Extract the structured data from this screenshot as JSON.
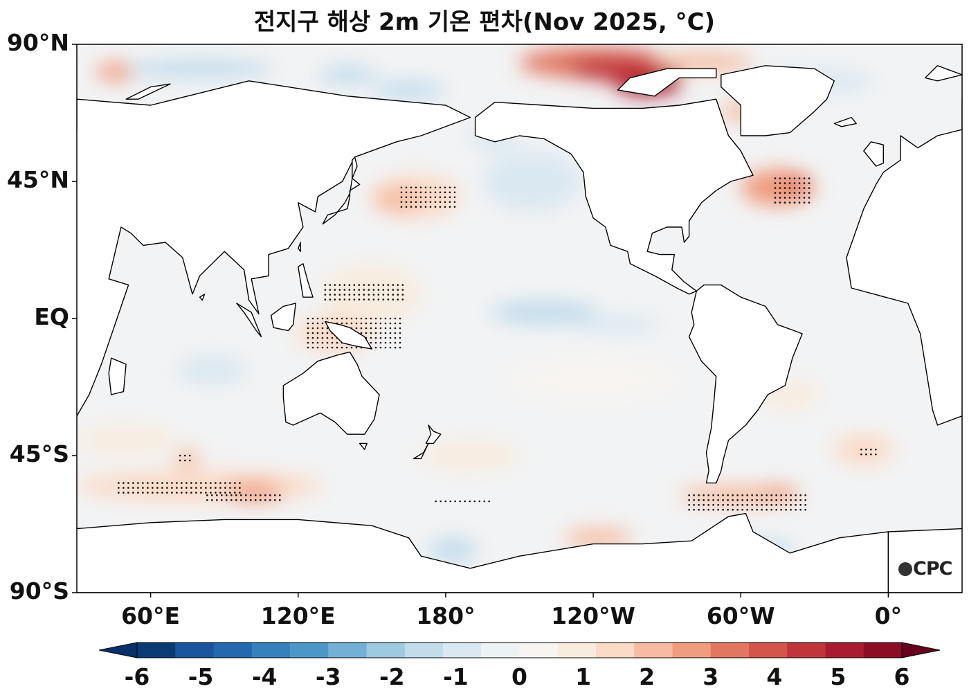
{
  "title": "전지구 해상 2m 기온 편차(Nov 2025, °C)",
  "logo_text": "CPC",
  "colors": {
    "land": "#ffffff",
    "ocean_base": "#f2f3f4",
    "frame": "#000000"
  },
  "lat_ticks": [
    {
      "label": "90°N",
      "lat": 90
    },
    {
      "label": "45°N",
      "lat": 45
    },
    {
      "label": "EQ",
      "lat": 0
    },
    {
      "label": "45°S",
      "lat": -45
    },
    {
      "label": "90°S",
      "lat": -90
    }
  ],
  "lon_ticks": [
    {
      "label": "60°E",
      "lon": 60
    },
    {
      "label": "120°E",
      "lon": 120
    },
    {
      "label": "180°",
      "lon": 180
    },
    {
      "label": "120°W",
      "lon": 240
    },
    {
      "label": "60°W",
      "lon": 300
    },
    {
      "label": "0°",
      "lon": 360
    }
  ],
  "colorbar": {
    "labels": [
      "-6",
      "-5",
      "-4",
      "-3",
      "-2",
      "-1",
      "0",
      "1",
      "2",
      "3",
      "4",
      "5",
      "6"
    ],
    "colors": [
      "#0a3b73",
      "#1a559e",
      "#2468ae",
      "#3481bc",
      "#4b98c8",
      "#74b0d5",
      "#9dc9e1",
      "#c2dcec",
      "#dae8f1",
      "#edf2f5",
      "#f7f4f1",
      "#f8ecdf",
      "#fbdac6",
      "#f6bca1",
      "#f09c7f",
      "#e27761",
      "#d4564b",
      "#c1353a",
      "#a91c30",
      "#8c0c25"
    ],
    "extend_low": "#08306b",
    "extend_high": "#67001f"
  },
  "anomaly_regions": [
    {
      "lon": 240,
      "lat": 84,
      "rx": 30,
      "ry": 5,
      "value": 3.5
    },
    {
      "lon": 262,
      "lat": 78,
      "rx": 14,
      "ry": 5,
      "value": 5.2
    },
    {
      "lon": 250,
      "lat": 82,
      "rx": 20,
      "ry": 4,
      "value": 4.4
    },
    {
      "lon": 285,
      "lat": 84,
      "rx": 20,
      "ry": 3,
      "value": 2.2
    },
    {
      "lon": 300,
      "lat": 68,
      "rx": 8,
      "ry": 3,
      "value": 1.8
    },
    {
      "lon": 46,
      "lat": 81,
      "rx": 8,
      "ry": 3,
      "value": 2.6
    },
    {
      "lon": 80,
      "lat": 82,
      "rx": 30,
      "ry": 3,
      "value": -1.2
    },
    {
      "lon": 140,
      "lat": 80,
      "rx": 12,
      "ry": 3,
      "value": -1.6
    },
    {
      "lon": 165,
      "lat": 75,
      "rx": 15,
      "ry": 3,
      "value": -1.8
    },
    {
      "lon": 330,
      "lat": 78,
      "rx": 25,
      "ry": 4,
      "value": -1.0
    },
    {
      "lon": 168,
      "lat": 40,
      "rx": 18,
      "ry": 7,
      "value": 1.6
    },
    {
      "lon": 160,
      "lat": 39,
      "rx": 10,
      "ry": 4,
      "value": 2.0
    },
    {
      "lon": 315,
      "lat": 43,
      "rx": 15,
      "ry": 6,
      "value": 2.4
    },
    {
      "lon": 322,
      "lat": 44,
      "rx": 6,
      "ry": 3,
      "value": 3.2
    },
    {
      "lon": 215,
      "lat": 45,
      "rx": 20,
      "ry": 10,
      "value": -0.9
    },
    {
      "lon": 200,
      "lat": 60,
      "rx": 10,
      "ry": 5,
      "value": -0.8
    },
    {
      "lon": 150,
      "lat": 8,
      "rx": 20,
      "ry": 10,
      "value": 1.0
    },
    {
      "lon": 135,
      "lat": -5,
      "rx": 15,
      "ry": 6,
      "value": 1.2
    },
    {
      "lon": 220,
      "lat": 2,
      "rx": 22,
      "ry": 4,
      "value": -1.4
    },
    {
      "lon": 250,
      "lat": -2,
      "rx": 18,
      "ry": 3,
      "value": -0.9
    },
    {
      "lon": 85,
      "lat": -17,
      "rx": 14,
      "ry": 5,
      "value": -0.8
    },
    {
      "lon": 80,
      "lat": -55,
      "rx": 50,
      "ry": 5,
      "value": 1.6
    },
    {
      "lon": 102,
      "lat": -57,
      "rx": 12,
      "ry": 3,
      "value": 2.6
    },
    {
      "lon": 75,
      "lat": -46,
      "rx": 5,
      "ry": 3,
      "value": 2.2
    },
    {
      "lon": 300,
      "lat": -58,
      "rx": 25,
      "ry": 3,
      "value": 1.8
    },
    {
      "lon": 315,
      "lat": -57,
      "rx": 8,
      "ry": 2,
      "value": 2.4
    },
    {
      "lon": 242,
      "lat": -72,
      "rx": 14,
      "ry": 3,
      "value": 2.0
    },
    {
      "lon": 183,
      "lat": -76,
      "rx": 10,
      "ry": 4,
      "value": -1.6
    },
    {
      "lon": 308,
      "lat": -76,
      "rx": 14,
      "ry": 3,
      "value": -1.4
    },
    {
      "lon": 350,
      "lat": -43,
      "rx": 12,
      "ry": 5,
      "value": 1.4
    },
    {
      "lon": 320,
      "lat": -25,
      "rx": 12,
      "ry": 5,
      "value": 1.0
    },
    {
      "lon": 240,
      "lat": -20,
      "rx": 35,
      "ry": 8,
      "value": 0.6
    },
    {
      "lon": 190,
      "lat": -45,
      "rx": 20,
      "ry": 5,
      "value": 0.8
    },
    {
      "lon": 50,
      "lat": -40,
      "rx": 20,
      "ry": 5,
      "value": 0.8
    }
  ],
  "stipple_regions": [
    {
      "lon": [
        162,
        184
      ],
      "lat": [
        36,
        43
      ]
    },
    {
      "lon": [
        314,
        329
      ],
      "lat": [
        38,
        46
      ]
    },
    {
      "lon": [
        131,
        164
      ],
      "lat": [
        5,
        11
      ]
    },
    {
      "lon": [
        124,
        162
      ],
      "lat": [
        -10,
        0
      ]
    },
    {
      "lon": [
        47,
        98
      ],
      "lat": [
        -58,
        -54
      ]
    },
    {
      "lon": [
        83,
        113
      ],
      "lat": [
        -60,
        -58
      ]
    },
    {
      "lon": [
        279,
        327
      ],
      "lat": [
        -63,
        -58
      ]
    },
    {
      "lon": [
        176,
        198
      ],
      "lat": [
        -60,
        -60
      ]
    },
    {
      "lon": [
        349,
        355
      ],
      "lat": [
        -46,
        -43
      ]
    },
    {
      "lon": [
        72,
        77
      ],
      "lat": [
        -48,
        -45
      ]
    },
    {
      "lon": [
        23,
        34
      ],
      "lat": [
        -52,
        -52
      ]
    }
  ],
  "land_polygons": [
    [
      [
        30,
        72
      ],
      [
        60,
        70
      ],
      [
        100,
        78
      ],
      [
        140,
        73
      ],
      [
        180,
        70
      ],
      [
        190,
        66
      ],
      [
        170,
        60
      ],
      [
        160,
        58
      ],
      [
        143,
        53
      ],
      [
        138,
        45
      ],
      [
        128,
        40
      ],
      [
        127,
        35
      ],
      [
        120,
        38
      ],
      [
        122,
        30
      ],
      [
        116,
        23
      ],
      [
        108,
        21
      ],
      [
        108,
        14
      ],
      [
        101,
        13
      ],
      [
        104,
        1.5
      ],
      [
        100,
        6
      ],
      [
        98,
        16
      ],
      [
        90,
        22
      ],
      [
        80,
        14
      ],
      [
        77,
        8
      ],
      [
        73,
        20
      ],
      [
        66,
        25
      ],
      [
        57,
        24
      ],
      [
        52,
        28
      ],
      [
        48,
        30
      ],
      [
        43,
        13
      ],
      [
        51,
        11
      ],
      [
        40,
        -15
      ],
      [
        35,
        -25
      ],
      [
        30,
        -32
      ],
      [
        20,
        -35
      ],
      [
        18,
        -30
      ],
      [
        13,
        -5
      ],
      [
        8,
        5
      ],
      [
        -15,
        10
      ],
      [
        -17,
        20
      ],
      [
        -10,
        36
      ],
      [
        -5,
        44
      ],
      [
        -2,
        48
      ],
      [
        5,
        52
      ],
      [
        5,
        60
      ],
      [
        12,
        56
      ],
      [
        20,
        60
      ],
      [
        30,
        62
      ],
      [
        30,
        72
      ]
    ],
    [
      [
        114,
        -22
      ],
      [
        122,
        -18
      ],
      [
        128,
        -14
      ],
      [
        136,
        -12
      ],
      [
        141,
        -11
      ],
      [
        144,
        -15
      ],
      [
        146,
        -19
      ],
      [
        153,
        -25
      ],
      [
        151,
        -33
      ],
      [
        147,
        -38
      ],
      [
        140,
        -38
      ],
      [
        135,
        -34
      ],
      [
        129,
        -31
      ],
      [
        118,
        -35
      ],
      [
        115,
        -34
      ],
      [
        114,
        -26
      ],
      [
        114,
        -22
      ]
    ],
    [
      [
        192,
        66
      ],
      [
        200,
        71
      ],
      [
        220,
        70
      ],
      [
        240,
        69
      ],
      [
        260,
        69
      ],
      [
        275,
        70
      ],
      [
        290,
        72
      ],
      [
        295,
        60
      ],
      [
        300,
        55
      ],
      [
        305,
        47
      ],
      [
        296,
        45
      ],
      [
        290,
        42
      ],
      [
        284,
        38
      ],
      [
        279,
        32
      ],
      [
        279,
        27
      ],
      [
        277,
        25
      ],
      [
        276,
        30
      ],
      [
        270,
        30
      ],
      [
        264,
        28
      ],
      [
        262,
        22
      ],
      [
        267,
        21
      ],
      [
        273,
        21
      ],
      [
        272,
        16
      ],
      [
        277,
        12
      ],
      [
        282,
        9
      ],
      [
        279,
        8
      ],
      [
        274,
        10
      ],
      [
        265,
        14
      ],
      [
        255,
        18
      ],
      [
        254,
        22
      ],
      [
        247,
        24
      ],
      [
        245,
        30
      ],
      [
        240,
        33
      ],
      [
        237,
        40
      ],
      [
        236,
        48
      ],
      [
        231,
        54
      ],
      [
        220,
        59
      ],
      [
        210,
        60
      ],
      [
        200,
        58
      ],
      [
        192,
        60
      ],
      [
        192,
        66
      ]
    ],
    [
      [
        282,
        9
      ],
      [
        285,
        11
      ],
      [
        292,
        11
      ],
      [
        300,
        7
      ],
      [
        310,
        4
      ],
      [
        315,
        -2
      ],
      [
        325,
        -5
      ],
      [
        321,
        -13
      ],
      [
        318,
        -22
      ],
      [
        311,
        -25
      ],
      [
        307,
        -30
      ],
      [
        302,
        -35
      ],
      [
        295,
        -40
      ],
      [
        293,
        -46
      ],
      [
        292,
        -50
      ],
      [
        290,
        -54
      ],
      [
        286,
        -54
      ],
      [
        287,
        -50
      ],
      [
        286,
        -44
      ],
      [
        288,
        -36
      ],
      [
        289,
        -28
      ],
      [
        290,
        -19
      ],
      [
        284,
        -14
      ],
      [
        279,
        -6
      ],
      [
        281,
        -2
      ],
      [
        280,
        2
      ],
      [
        282,
        9
      ]
    ],
    [
      [
        300,
        60
      ],
      [
        310,
        60
      ],
      [
        320,
        61
      ],
      [
        330,
        68
      ],
      [
        335,
        72
      ],
      [
        338,
        78
      ],
      [
        330,
        82
      ],
      [
        310,
        83
      ],
      [
        292,
        80
      ],
      [
        292,
        76
      ],
      [
        300,
        70
      ],
      [
        300,
        60
      ]
    ],
    [
      [
        265,
        73
      ],
      [
        275,
        79
      ],
      [
        290,
        79
      ],
      [
        290,
        82
      ],
      [
        270,
        82
      ],
      [
        255,
        79
      ],
      [
        250,
        75
      ],
      [
        265,
        73
      ]
    ],
    [
      [
        0,
        -70
      ],
      [
        30,
        -69
      ],
      [
        60,
        -67
      ],
      [
        90,
        -66
      ],
      [
        120,
        -66
      ],
      [
        150,
        -68
      ],
      [
        165,
        -72
      ],
      [
        170,
        -78
      ],
      [
        190,
        -82
      ],
      [
        210,
        -78
      ],
      [
        240,
        -74
      ],
      [
        260,
        -74
      ],
      [
        280,
        -73
      ],
      [
        295,
        -65
      ],
      [
        302,
        -64
      ],
      [
        305,
        -70
      ],
      [
        320,
        -77
      ],
      [
        340,
        -72
      ],
      [
        360,
        -70
      ],
      [
        360,
        -90
      ],
      [
        0,
        -90
      ],
      [
        0,
        -70
      ]
    ],
    [
      [
        130,
        31
      ],
      [
        132,
        34
      ],
      [
        136,
        35
      ],
      [
        140,
        36
      ],
      [
        141,
        40
      ],
      [
        141,
        42
      ],
      [
        145,
        44
      ],
      [
        142,
        46
      ],
      [
        141,
        41
      ],
      [
        139,
        38
      ],
      [
        135,
        34
      ],
      [
        130,
        31
      ]
    ],
    [
      [
        95,
        5
      ],
      [
        101,
        2
      ],
      [
        105,
        -6
      ],
      [
        103,
        -4
      ],
      [
        98,
        2
      ],
      [
        95,
        5
      ]
    ],
    [
      [
        109,
        1
      ],
      [
        114,
        4
      ],
      [
        119,
        5
      ],
      [
        118,
        -2
      ],
      [
        116,
        -4
      ],
      [
        110,
        -3
      ],
      [
        109,
        1
      ]
    ],
    [
      [
        131,
        -1
      ],
      [
        137,
        -2
      ],
      [
        141,
        -3
      ],
      [
        147,
        -6
      ],
      [
        150,
        -10
      ],
      [
        143,
        -9
      ],
      [
        138,
        -8
      ],
      [
        133,
        -4
      ],
      [
        131,
        -1
      ]
    ],
    [
      [
        44,
        -13
      ],
      [
        50,
        -15
      ],
      [
        49,
        -24
      ],
      [
        44,
        -25
      ],
      [
        43,
        -18
      ],
      [
        44,
        -13
      ]
    ],
    [
      [
        173,
        -35
      ],
      [
        175,
        -37
      ],
      [
        178,
        -38
      ],
      [
        175,
        -41
      ],
      [
        172,
        -41
      ],
      [
        174,
        -38
      ],
      [
        173,
        -35
      ]
    ],
    [
      [
        167,
        -46
      ],
      [
        171,
        -44
      ],
      [
        173,
        -41
      ],
      [
        170,
        -46
      ],
      [
        167,
        -46
      ]
    ],
    [
      [
        350,
        55
      ],
      [
        353,
        58
      ],
      [
        358,
        57
      ],
      [
        358,
        51
      ],
      [
        355,
        50
      ],
      [
        352,
        53
      ],
      [
        350,
        55
      ]
    ],
    [
      [
        145,
        -41
      ],
      [
        148,
        -41
      ],
      [
        147,
        -43
      ],
      [
        145,
        -41
      ]
    ],
    [
      [
        80,
        7
      ],
      [
        82,
        8
      ],
      [
        81,
        6
      ],
      [
        80,
        7
      ]
    ],
    [
      [
        120,
        23
      ],
      [
        121,
        25
      ],
      [
        121,
        22
      ],
      [
        120,
        23
      ]
    ],
    [
      [
        120,
        17
      ],
      [
        122,
        18
      ],
      [
        124,
        12
      ],
      [
        126,
        7
      ],
      [
        122,
        7
      ],
      [
        120,
        17
      ]
    ],
    [
      [
        338,
        64
      ],
      [
        345,
        66
      ],
      [
        347,
        64
      ],
      [
        341,
        63
      ],
      [
        338,
        64
      ]
    ],
    [
      [
        20,
        83
      ],
      [
        30,
        80
      ],
      [
        20,
        78
      ],
      [
        15,
        79
      ],
      [
        20,
        83
      ]
    ],
    [
      [
        50,
        72
      ],
      [
        60,
        76
      ],
      [
        68,
        77
      ],
      [
        55,
        72
      ],
      [
        50,
        72
      ]
    ],
    [
      [
        143,
        53
      ],
      [
        144,
        50
      ],
      [
        142,
        46
      ],
      [
        142,
        52
      ],
      [
        143,
        53
      ]
    ]
  ]
}
